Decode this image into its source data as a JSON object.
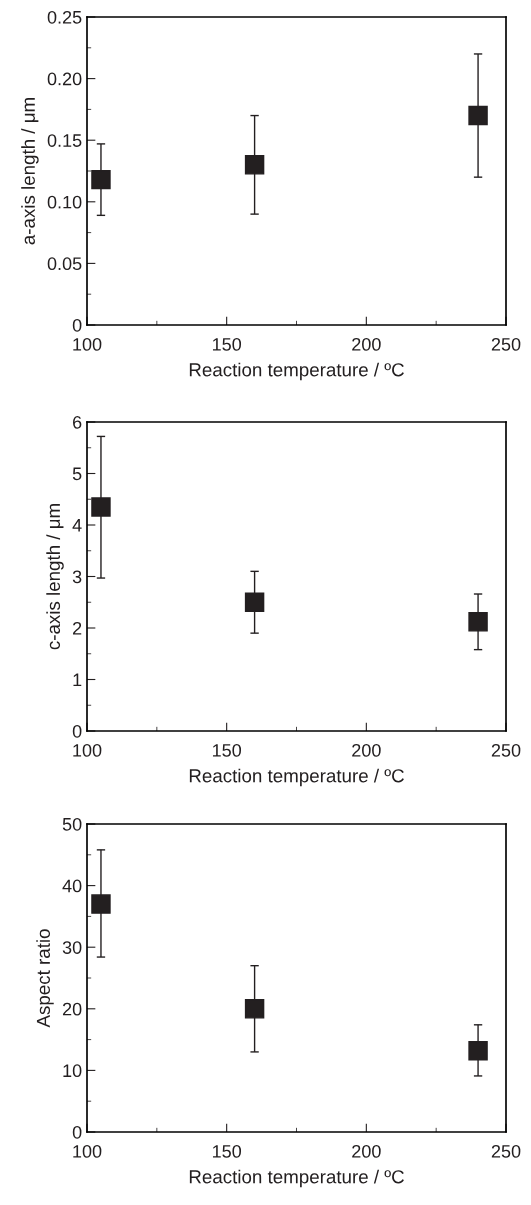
{
  "chart_data": [
    {
      "type": "scatter",
      "xlabel": "Reaction temperature / ºC",
      "ylabel": "a-axis length / μm",
      "x": [
        105,
        160,
        240
      ],
      "series": [
        {
          "color": "#231f20",
          "values": [
            0.118,
            0.13,
            0.17
          ],
          "errors": [
            [
              0.089,
              0.147
            ],
            [
              0.09,
              0.17
            ],
            [
              0.12,
              0.22
            ]
          ]
        }
      ],
      "xlim": [
        100,
        250
      ],
      "xticks": [
        100,
        {
          "value": 125,
          "label": null
        },
        150,
        {
          "value": 175,
          "label": null
        },
        200,
        {
          "value": 225,
          "label": null
        },
        250
      ],
      "ylim": [
        0,
        0.25
      ],
      "yticks": [
        {
          "value": 0,
          "label": "0"
        },
        {
          "value": 0.025,
          "label": null
        },
        {
          "value": 0.05,
          "label": "0.05"
        },
        {
          "value": 0.075,
          "label": null
        },
        {
          "value": 0.1,
          "label": "0.10"
        },
        {
          "value": 0.125,
          "label": null
        },
        {
          "value": 0.15,
          "label": "0.15"
        },
        {
          "value": 0.175,
          "label": null
        },
        {
          "value": 0.2,
          "label": "0.20"
        },
        {
          "value": 0.225,
          "label": null
        },
        {
          "value": 0.25,
          "label": "0.25"
        }
      ],
      "marker": "square",
      "grid": false,
      "legend": false
    },
    {
      "type": "scatter",
      "xlabel": "Reaction temperature / ºC",
      "ylabel": "c-axis length / μm",
      "x": [
        105,
        160,
        240
      ],
      "series": [
        {
          "color": "#231f20",
          "values": [
            4.35,
            2.5,
            2.12
          ],
          "errors": [
            [
              2.97,
              5.72
            ],
            [
              1.9,
              3.1
            ],
            [
              1.58,
              2.66
            ]
          ]
        }
      ],
      "xlim": [
        100,
        250
      ],
      "xticks": [
        100,
        {
          "value": 125,
          "label": null
        },
        150,
        {
          "value": 175,
          "label": null
        },
        200,
        {
          "value": 225,
          "label": null
        },
        250
      ],
      "ylim": [
        0,
        6
      ],
      "yticks": [
        0,
        {
          "value": 0.5,
          "label": null
        },
        1,
        {
          "value": 1.5,
          "label": null
        },
        2,
        {
          "value": 2.5,
          "label": null
        },
        3,
        {
          "value": 3.5,
          "label": null
        },
        4,
        {
          "value": 4.5,
          "label": null
        },
        5,
        {
          "value": 5.5,
          "label": null
        },
        6
      ],
      "marker": "square",
      "grid": false,
      "legend": false
    },
    {
      "type": "scatter",
      "xlabel": "Reaction temperature / ºC",
      "ylabel": "Aspect ratio",
      "x": [
        105,
        160,
        240
      ],
      "series": [
        {
          "color": "#231f20",
          "values": [
            37,
            20,
            13.2
          ],
          "errors": [
            [
              28.4,
              45.8
            ],
            [
              13,
              27
            ],
            [
              9.1,
              17.4
            ]
          ]
        }
      ],
      "xlim": [
        100,
        250
      ],
      "xticks": [
        100,
        {
          "value": 125,
          "label": null
        },
        150,
        {
          "value": 175,
          "label": null
        },
        200,
        {
          "value": 225,
          "label": null
        },
        250
      ],
      "ylim": [
        0,
        50
      ],
      "yticks": [
        0,
        {
          "value": 5,
          "label": null
        },
        10,
        {
          "value": 15,
          "label": null
        },
        20,
        {
          "value": 25,
          "label": null
        },
        30,
        {
          "value": 35,
          "label": null
        },
        40,
        {
          "value": 45,
          "label": null
        },
        50
      ],
      "marker": "square",
      "grid": false,
      "legend": false
    }
  ]
}
